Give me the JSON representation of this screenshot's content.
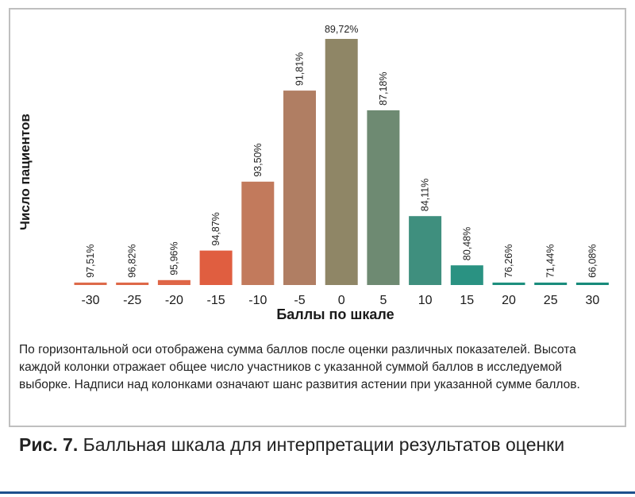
{
  "ylabel": "Число пациентов",
  "xlabel": "Баллы по шкале",
  "note": "По горизонтальной оси отображена сумма баллов после оценки различных показателей. Высота каждой колонки отражает общее число участников с указанной суммой баллов в исследуемой выборке. Надписи над колонками означают шанс развития астении при указанной сумме баллов.",
  "caption": {
    "label": "Рис. 7.",
    "text": " Балльная шкала для интерпретации результатов оценки"
  },
  "chart_data": {
    "type": "bar",
    "title": "",
    "xlabel": "Баллы по шкале",
    "ylabel": "Число пациентов",
    "categories": [
      "-30",
      "-25",
      "-20",
      "-15",
      "-10",
      "-5",
      "0",
      "5",
      "10",
      "15",
      "20",
      "25",
      "30"
    ],
    "values": [
      1,
      1,
      2,
      14,
      42,
      79,
      100,
      71,
      28,
      8,
      1,
      1,
      1
    ],
    "value_scale": "relative height (0-100), y axis unlabeled",
    "data_labels": [
      "97,51%",
      "96,82%",
      "95,96%",
      "94,87%",
      "93,50%",
      "91,81%",
      "89,72%",
      "87,18%",
      "84,11%",
      "80,48%",
      "76,26%",
      "71,44%",
      "66,08%"
    ],
    "colors": [
      "#dd6a4a",
      "#de6848",
      "#df6647",
      "#e05e40",
      "#c27a5c",
      "#b07e63",
      "#8f8666",
      "#6e8a72",
      "#3f8f7e",
      "#2a9282",
      "#1d8f7e",
      "#1a8c7c",
      "#178a7a"
    ],
    "ylim": [
      0,
      100
    ],
    "grid": false,
    "legend": "none"
  }
}
